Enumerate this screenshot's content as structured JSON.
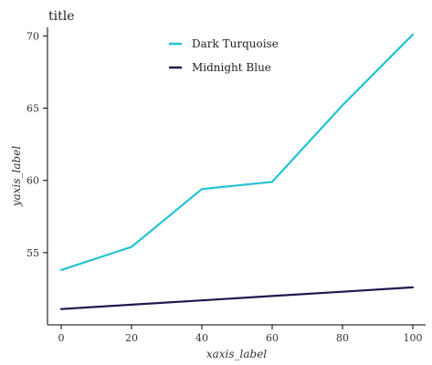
{
  "chart_data": {
    "type": "line",
    "title": "title",
    "xlabel": "xaxis_label",
    "ylabel": "yaxis_label",
    "xlim": [
      0,
      100
    ],
    "ylim": [
      50.7,
      70.4
    ],
    "xticks": [
      0,
      20,
      40,
      60,
      80,
      100
    ],
    "xtick_labels": [
      "0",
      "20",
      "40",
      "60",
      "80",
      "100"
    ],
    "yticks": [
      55,
      60,
      65,
      70
    ],
    "ytick_labels": [
      "55",
      "60",
      "65",
      "70"
    ],
    "grid": false,
    "legend": "top-center",
    "series": [
      {
        "name": "Dark Turquoise",
        "color": "#21c3d3",
        "x": [
          0,
          20,
          40,
          60,
          80,
          100
        ],
        "y": [
          53.8,
          55.4,
          59.4,
          59.9,
          65.2,
          70.1
        ]
      },
      {
        "name": "Midnight Blue",
        "color": "#1a1a4e",
        "x": [
          0,
          20,
          40,
          60,
          80,
          100
        ],
        "y": [
          51.1,
          51.4,
          51.7,
          52.0,
          52.3,
          52.6
        ]
      }
    ]
  }
}
